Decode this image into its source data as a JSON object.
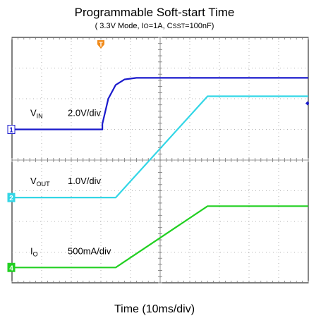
{
  "chart_data": {
    "type": "line",
    "title": "Programmable Soft-start Time",
    "subtitle": {
      "prefix": "( 3.3V Mode, I",
      "sub1": "O",
      "mid": "=1A, C",
      "sub2": "SST",
      "suffix": "=100nF)"
    },
    "xlabel": "Time (10ms/div)",
    "grid": true,
    "divisions": {
      "x": 10,
      "y": 8
    },
    "xlim": [
      0,
      10
    ],
    "trigger_marker": {
      "label": "T",
      "x": 3
    },
    "series": [
      {
        "name": "V_IN",
        "marker": "1",
        "color": "#1a1acc",
        "label_main": "V",
        "label_sub": "IN",
        "scale": "2.0V/div",
        "baseline_div": 5.0,
        "points": [
          [
            0,
            0
          ],
          [
            3.05,
            0
          ],
          [
            3.05,
            0.18
          ],
          [
            3.25,
            1.0
          ],
          [
            3.5,
            1.45
          ],
          [
            3.8,
            1.63
          ],
          [
            4.2,
            1.68
          ],
          [
            10,
            1.68
          ]
        ]
      },
      {
        "name": "V_OUT",
        "marker": "2",
        "color": "#33d6e6",
        "label_main": "V",
        "label_sub": "OUT",
        "scale": "1.0V/div",
        "baseline_div": 2.78,
        "points": [
          [
            0,
            0
          ],
          [
            3.5,
            0
          ],
          [
            6.6,
            3.3
          ],
          [
            10,
            3.3
          ]
        ]
      },
      {
        "name": "I_O",
        "marker": "4",
        "color": "#22d022",
        "label_main": "I",
        "label_sub": "O",
        "scale": "500mA/div",
        "baseline_div": 0.5,
        "points": [
          [
            0,
            0
          ],
          [
            3.5,
            0
          ],
          [
            6.6,
            2.0
          ],
          [
            10,
            2.0
          ]
        ]
      }
    ]
  }
}
